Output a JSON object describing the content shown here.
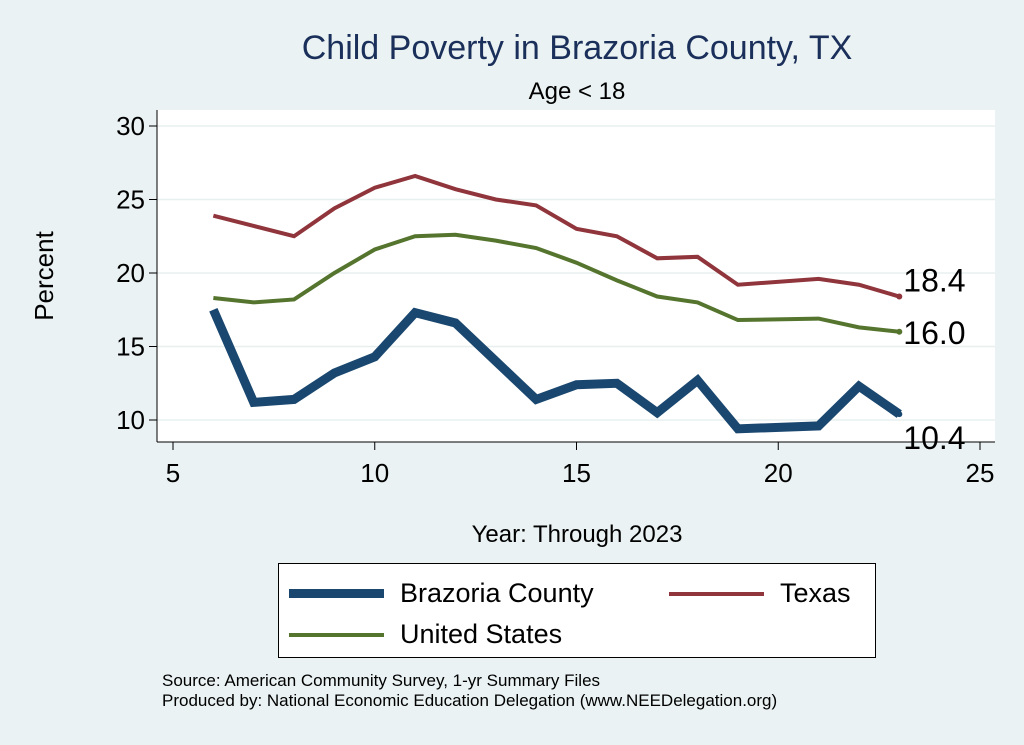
{
  "chart_data": {
    "type": "line",
    "title": "Child Poverty in Brazoria County, TX",
    "subtitle": "Age < 18",
    "xlabel": "Year: Through 2023",
    "ylabel": "Percent",
    "xlim": [
      5,
      25
    ],
    "ylim": [
      9,
      30.5
    ],
    "xticks": [
      5,
      10,
      15,
      20,
      25
    ],
    "yticks": [
      10,
      15,
      20,
      25,
      30
    ],
    "grid": true,
    "legend_position": "bottom",
    "series": [
      {
        "name": "Brazoria County",
        "color": "#1a476f",
        "x": [
          6,
          7,
          8,
          9,
          10,
          11,
          12,
          13,
          14,
          15,
          16,
          17,
          18,
          19,
          21,
          22,
          23
        ],
        "y": [
          17.5,
          11.2,
          11.4,
          13.2,
          14.3,
          17.3,
          16.6,
          14.0,
          11.4,
          12.4,
          12.5,
          10.5,
          12.7,
          9.4,
          9.6,
          12.3,
          10.4
        ],
        "end_label": "10.4"
      },
      {
        "name": "Texas",
        "color": "#90353b",
        "x": [
          6,
          7,
          8,
          9,
          10,
          11,
          12,
          13,
          14,
          15,
          16,
          17,
          18,
          19,
          21,
          22,
          23
        ],
        "y": [
          23.9,
          23.2,
          22.5,
          24.4,
          25.8,
          26.6,
          25.7,
          25.0,
          24.6,
          23.0,
          22.5,
          21.0,
          21.1,
          19.2,
          19.6,
          19.2,
          18.4
        ],
        "end_label": "18.4"
      },
      {
        "name": "United States",
        "color": "#55752f",
        "x": [
          6,
          7,
          8,
          9,
          10,
          11,
          12,
          13,
          14,
          15,
          16,
          17,
          18,
          19,
          21,
          22,
          23
        ],
        "y": [
          18.3,
          18.0,
          18.2,
          20.0,
          21.6,
          22.5,
          22.6,
          22.2,
          21.7,
          20.7,
          19.5,
          18.4,
          18.0,
          16.8,
          16.9,
          16.3,
          16.0
        ],
        "end_label": "16.0"
      }
    ],
    "notes": [
      "Source: American Community Survey, 1-yr Summary Files",
      "Produced by: National Economic Education Delegation (www.NEEDelegation.org)"
    ]
  }
}
